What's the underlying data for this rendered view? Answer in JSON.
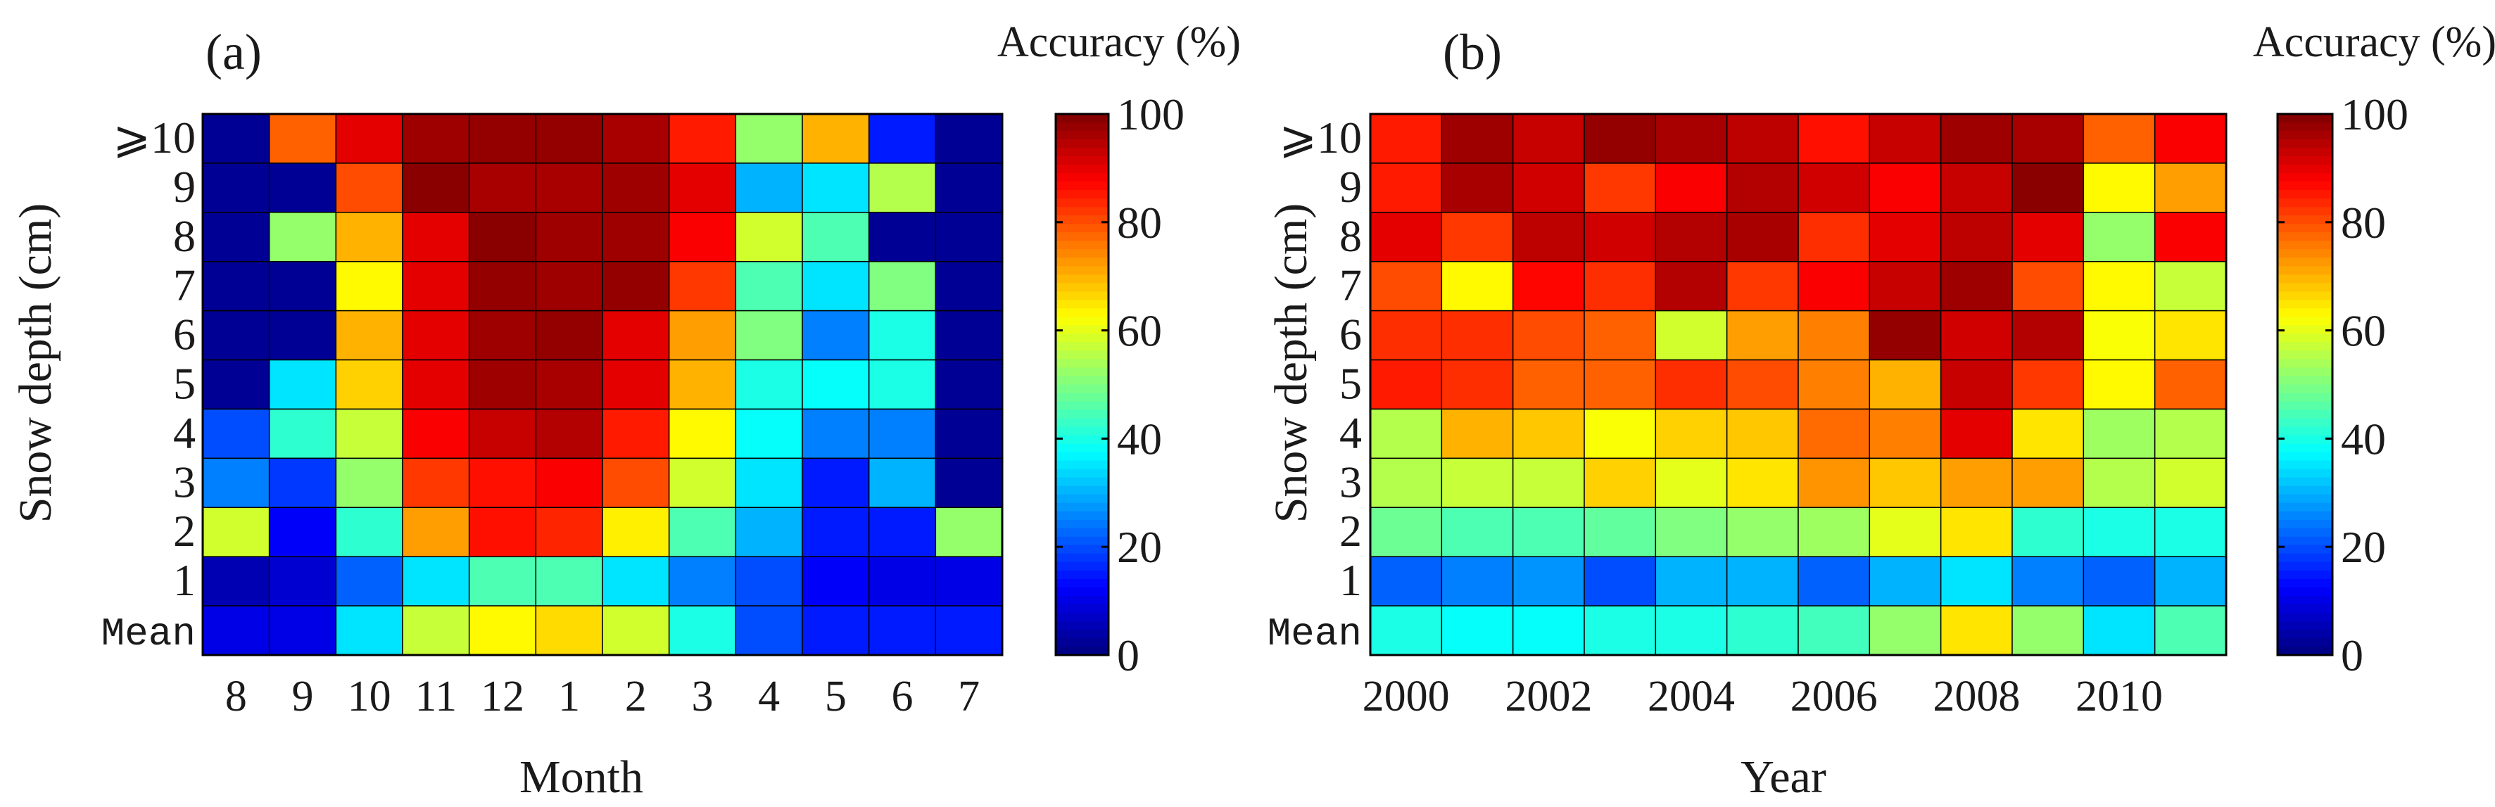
{
  "chart_data": [
    {
      "type": "heatmap",
      "panel_label": "(a)",
      "colorbar_title": "Accuracy (%)",
      "colorbar_ticks": [
        "0",
        "20",
        "40",
        "60",
        "80",
        "100"
      ],
      "color_range": [
        0,
        100
      ],
      "title": "",
      "xlabel": "Month",
      "ylabel": "Snow depth (cm)",
      "x_categories": [
        "8",
        "9",
        "10",
        "11",
        "12",
        "1",
        "2",
        "3",
        "4",
        "5",
        "6",
        "7"
      ],
      "x_tick_labels": [
        "8",
        "9",
        "10",
        "11",
        "12",
        "1",
        "2",
        "3",
        "4",
        "5",
        "6",
        "7"
      ],
      "y_categories": [
        "⩾10",
        "9",
        "8",
        "7",
        "6",
        "5",
        "4",
        "3",
        "2",
        "1",
        "Mean"
      ],
      "values": [
        [
          2,
          78,
          90,
          97,
          98,
          98,
          96,
          85,
          52,
          70,
          15,
          2
        ],
        [
          2,
          2,
          80,
          99,
          96,
          96,
          97,
          90,
          30,
          35,
          55,
          2
        ],
        [
          2,
          52,
          70,
          90,
          99,
          97,
          97,
          88,
          58,
          45,
          2,
          2
        ],
        [
          2,
          2,
          63,
          90,
          98,
          97,
          98,
          82,
          45,
          35,
          50,
          2
        ],
        [
          2,
          2,
          70,
          90,
          97,
          98,
          90,
          72,
          50,
          25,
          40,
          2
        ],
        [
          2,
          35,
          67,
          90,
          97,
          96,
          90,
          70,
          40,
          38,
          40,
          2
        ],
        [
          20,
          42,
          57,
          88,
          93,
          95,
          85,
          63,
          38,
          25,
          25,
          2
        ],
        [
          25,
          18,
          52,
          82,
          86,
          88,
          80,
          58,
          35,
          15,
          30,
          2
        ],
        [
          58,
          12,
          42,
          72,
          86,
          84,
          64,
          45,
          30,
          15,
          15,
          52
        ],
        [
          5,
          8,
          22,
          35,
          45,
          45,
          35,
          25,
          20,
          12,
          10,
          10
        ],
        [
          10,
          10,
          35,
          57,
          63,
          66,
          58,
          40,
          20,
          15,
          15,
          15
        ]
      ]
    },
    {
      "type": "heatmap",
      "panel_label": "(b)",
      "colorbar_title": "Accuracy (%)",
      "colorbar_ticks": [
        "0",
        "20",
        "40",
        "60",
        "80",
        "100"
      ],
      "color_range": [
        0,
        100
      ],
      "title": "",
      "xlabel": "Year",
      "ylabel": "Snow depth (cm)",
      "x_categories": [
        "2000",
        "2001",
        "2002",
        "2003",
        "2004",
        "2005",
        "2006",
        "2007",
        "2008",
        "2009",
        "2010",
        "2011"
      ],
      "x_tick_labels": [
        "2000",
        "2002",
        "2004",
        "2006",
        "2008",
        "2010"
      ],
      "y_categories": [
        "⩾10",
        "9",
        "8",
        "7",
        "6",
        "5",
        "4",
        "3",
        "2",
        "1",
        "Mean"
      ],
      "values": [
        [
          85,
          97,
          93,
          98,
          96,
          94,
          86,
          93,
          97,
          96,
          78,
          88
        ],
        [
          85,
          96,
          92,
          82,
          88,
          95,
          92,
          88,
          93,
          99,
          63,
          72
        ],
        [
          90,
          82,
          94,
          92,
          95,
          96,
          83,
          90,
          94,
          90,
          52,
          88
        ],
        [
          80,
          63,
          87,
          83,
          95,
          82,
          88,
          93,
          97,
          80,
          63,
          57
        ],
        [
          83,
          83,
          80,
          78,
          58,
          72,
          75,
          98,
          92,
          95,
          62,
          65
        ],
        [
          85,
          83,
          78,
          78,
          83,
          80,
          75,
          70,
          93,
          82,
          63,
          78
        ],
        [
          55,
          70,
          68,
          62,
          67,
          68,
          77,
          75,
          90,
          65,
          53,
          55
        ],
        [
          55,
          57,
          57,
          67,
          60,
          65,
          73,
          68,
          72,
          72,
          55,
          58
        ],
        [
          48,
          45,
          45,
          47,
          50,
          52,
          53,
          60,
          65,
          42,
          40,
          40
        ],
        [
          22,
          25,
          27,
          20,
          30,
          30,
          22,
          30,
          35,
          25,
          22,
          30
        ],
        [
          40,
          38,
          38,
          40,
          40,
          42,
          44,
          52,
          65,
          52,
          35,
          45
        ]
      ]
    }
  ]
}
